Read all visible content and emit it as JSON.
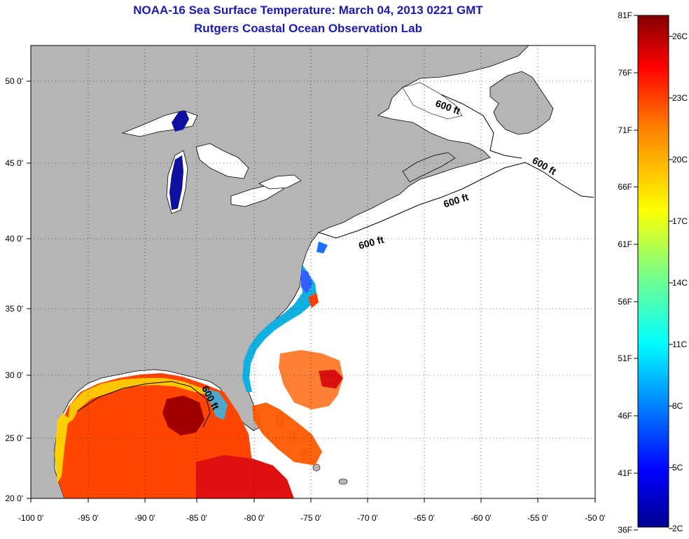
{
  "title": "NOAA-16 Sea Surface Temperature:  March 04, 2013 0221 GMT",
  "subtitle": "Rutgers Coastal Ocean Observation Lab",
  "x_ticks": [
    "-100 0'",
    "-95 0'",
    "-90 0'",
    "-85 0'",
    "-80 0'",
    "-75 0'",
    "-70 0'",
    "-65 0'",
    "-60 0'",
    "-55 0'",
    "-50 0'"
  ],
  "y_ticks": [
    "50 0'",
    "45 0'",
    "40 0'",
    "35 0'",
    "30 0'",
    "25 0'",
    "20 0'"
  ],
  "contour_label": "600 ft",
  "colorbar": {
    "fahrenheit": [
      "81F",
      "76F",
      "71F",
      "66F",
      "61F",
      "56F",
      "51F",
      "46F",
      "41F",
      "36F"
    ],
    "celsius": [
      "26C",
      "23C",
      "20C",
      "17C",
      "14C",
      "11C",
      "8C",
      "5C",
      "2C"
    ],
    "colors": [
      "#00008f",
      "#0000ff",
      "#0080ff",
      "#00ffff",
      "#80ff80",
      "#ffff00",
      "#ff8000",
      "#ff0000",
      "#800000"
    ]
  },
  "colors": {
    "land": "#b5b5b5",
    "title": "#1a1ab0"
  }
}
